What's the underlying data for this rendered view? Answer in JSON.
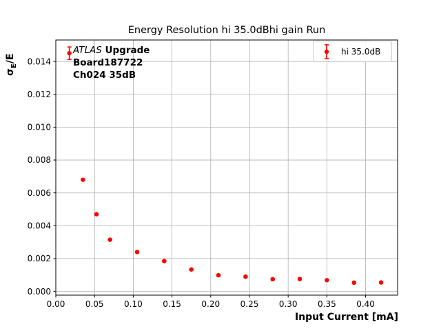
{
  "figure_title": "Energy Resolution hi 35.0dBhi gain Run",
  "chart_data": {
    "type": "scatter",
    "title": "Energy Resolution hi 35.0dBhi gain Run",
    "xlabel": "Input Current [mA]",
    "ylabel": "σ_E/E",
    "series": [
      {
        "name": "hi 35.0dB",
        "color": "#ff0000",
        "marker": "circle-with-errorbar",
        "x": [
          0.0175,
          0.035,
          0.0525,
          0.07,
          0.105,
          0.14,
          0.175,
          0.21,
          0.245,
          0.28,
          0.315,
          0.35,
          0.385,
          0.42
        ],
        "y": [
          0.0145,
          0.0068,
          0.0047,
          0.00315,
          0.0024,
          0.00185,
          0.00134,
          0.00099,
          0.0009,
          0.00075,
          0.00076,
          0.00069,
          0.00054,
          0.00055
        ],
        "yerr": [
          0.00038,
          5e-05,
          5e-05,
          5e-05,
          5e-05,
          5e-05,
          5e-05,
          5e-05,
          5e-05,
          5e-05,
          5e-05,
          5e-05,
          5e-05,
          5e-05
        ]
      }
    ],
    "xlim": [
      0,
      0.4413
    ],
    "ylim": [
      -0.000222,
      0.015303
    ],
    "xticks": {
      "values": [
        0,
        0.05,
        0.1,
        0.15,
        0.2,
        0.25,
        0.3,
        0.35,
        0.4
      ],
      "labels": [
        "0.00",
        "0.05",
        "0.10",
        "0.15",
        "0.20",
        "0.25",
        "0.30",
        "0.35",
        "0.40"
      ]
    },
    "yticks": {
      "values": [
        0,
        0.002,
        0.004,
        0.006,
        0.008,
        0.01,
        0.012,
        0.014
      ],
      "labels": [
        "0.000",
        "0.002",
        "0.004",
        "0.006",
        "0.008",
        "0.010",
        "0.012",
        "0.014"
      ]
    },
    "grid": true,
    "grid_color": "#b0b0b0",
    "spine_color": "#000000",
    "legend_position": "upper right"
  },
  "ylabel_parts": {
    "sigma": "σ",
    "sub": "E",
    "rest": "/E"
  },
  "annotation": {
    "line1_italic": "ATLAS",
    "line1_bold": " Upgrade",
    "line2": "Board187722",
    "line3": "Ch024 35dB"
  },
  "legend": {
    "entry_label": "hi 35.0dB",
    "marker_color": "#ff0000"
  }
}
